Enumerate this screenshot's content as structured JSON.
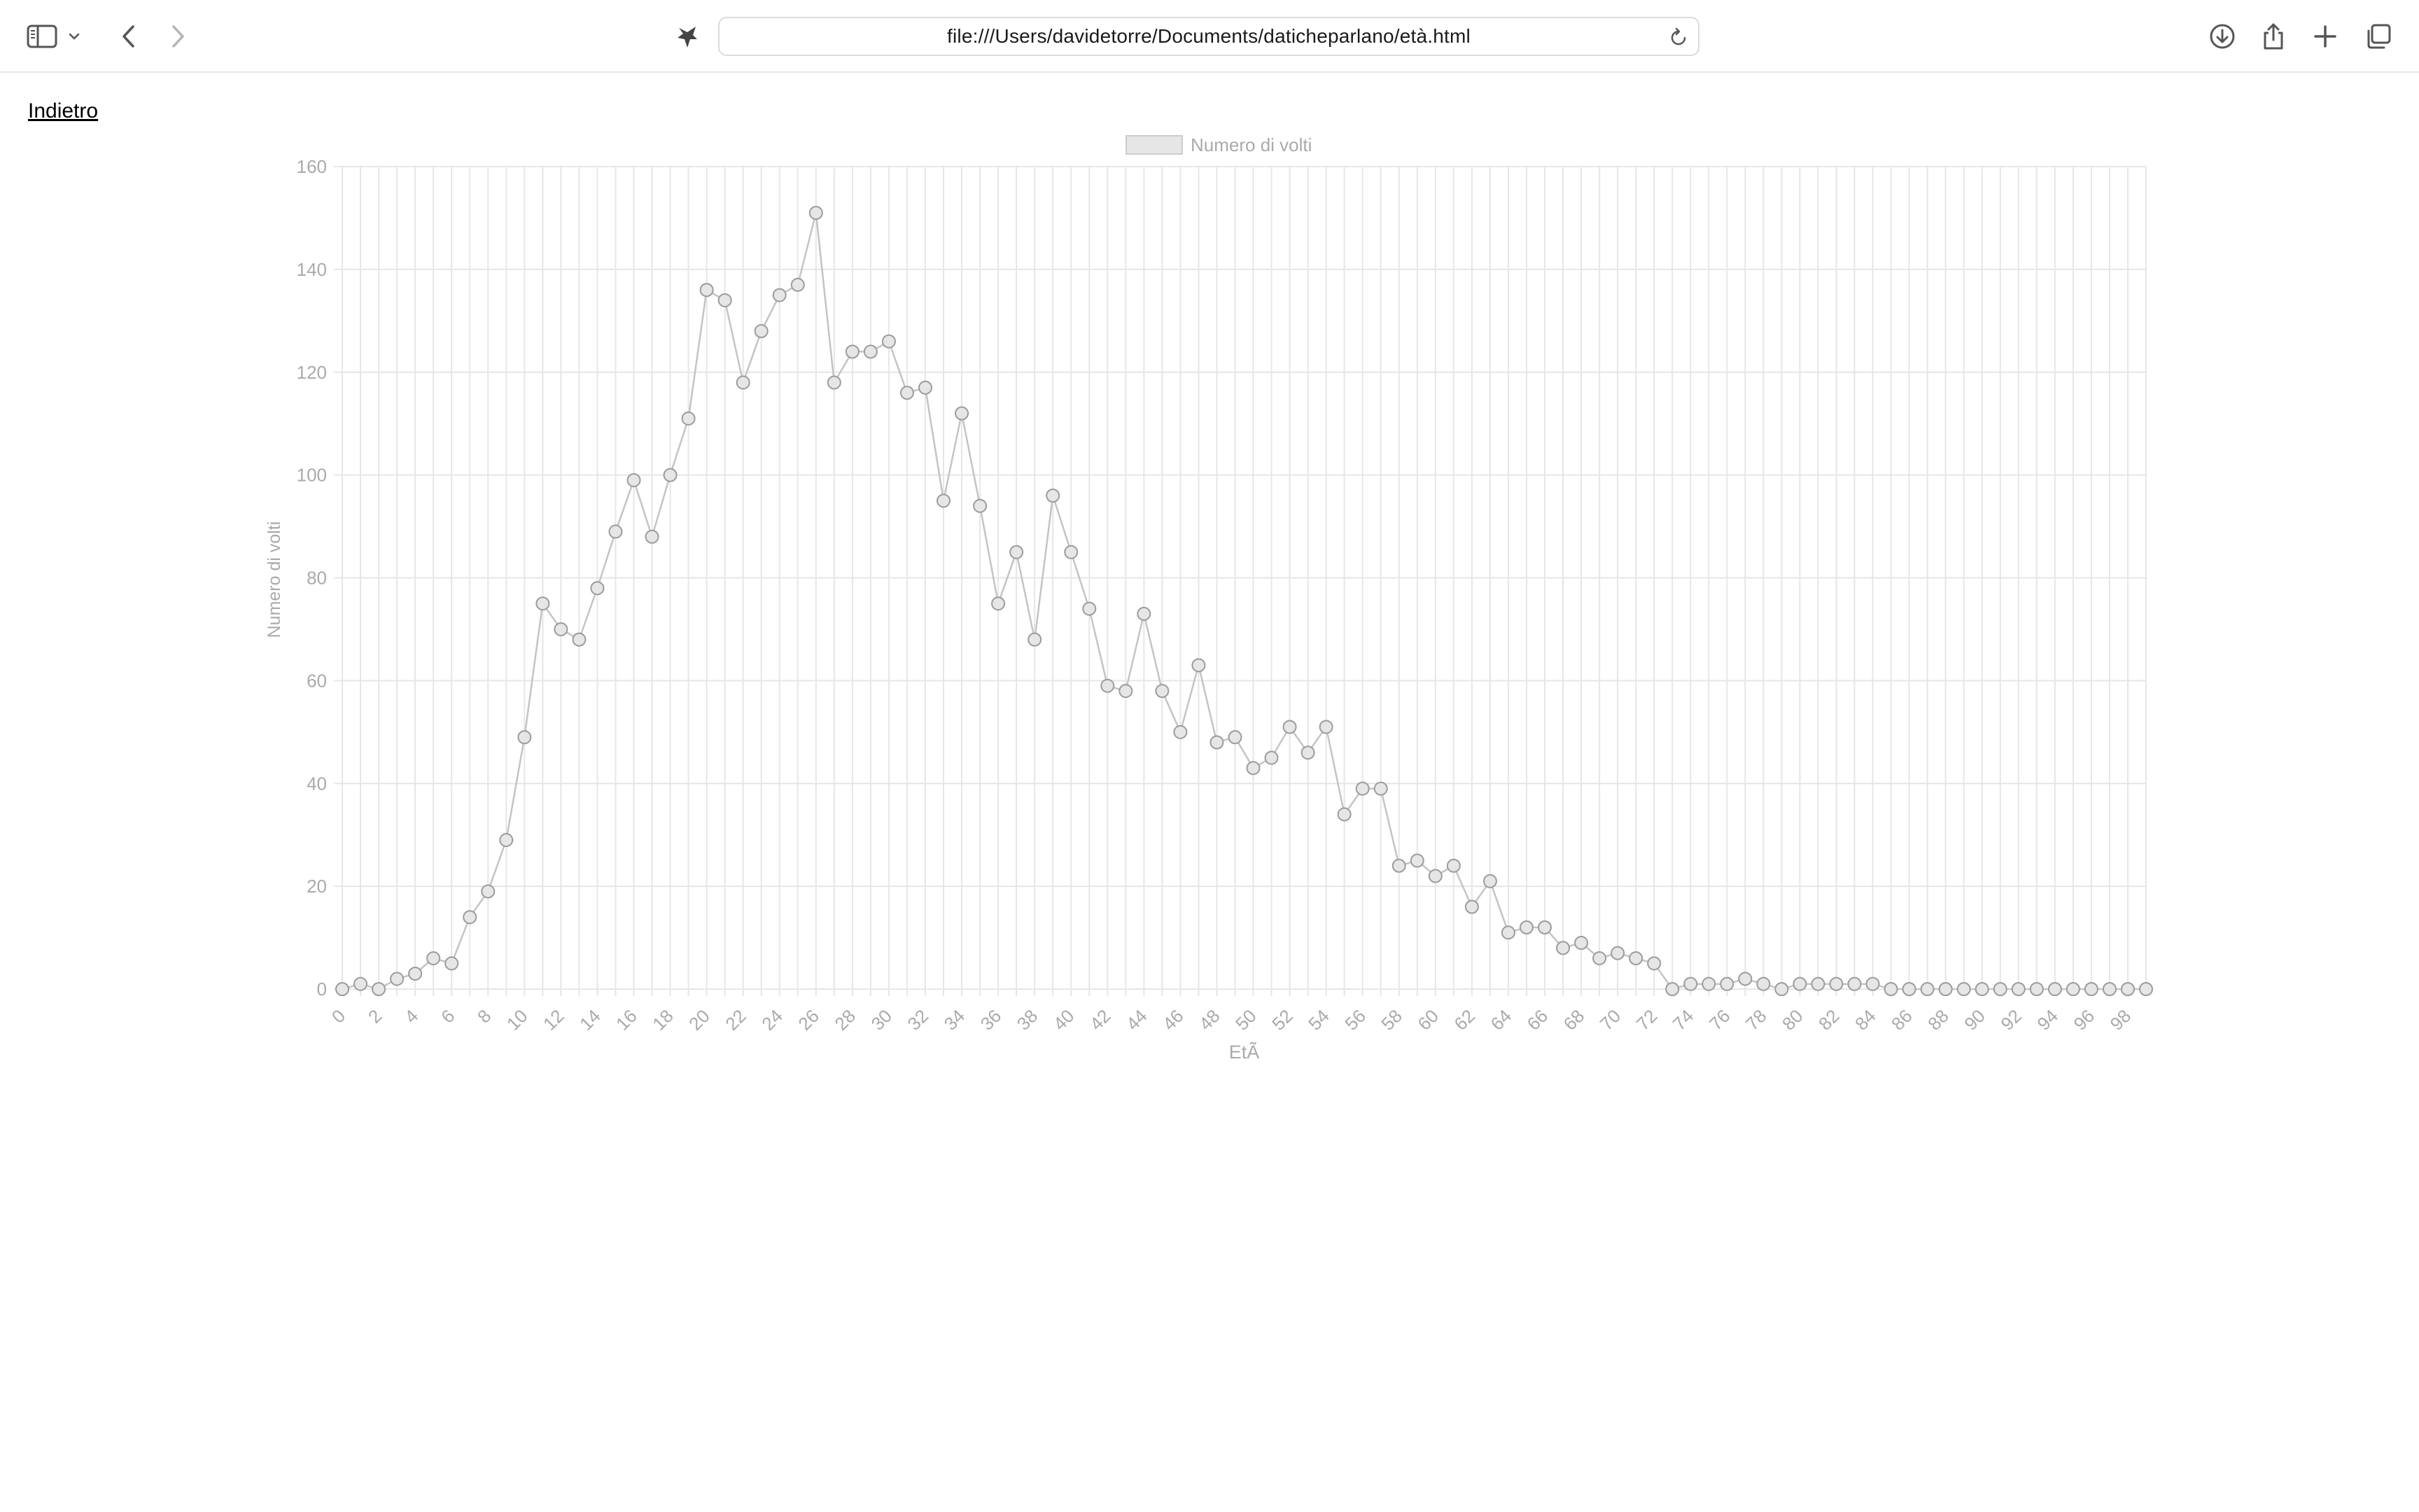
{
  "browser": {
    "url": "file:///Users/davidetorre/Documents/daticheparlano/età.html",
    "icons": {
      "sidebar": "sidebar-icon",
      "sidebar_menu": "chevron-down-icon",
      "back": "chevron-left-icon",
      "forward": "chevron-right-icon",
      "extension": "extension-icon",
      "reload": "reload-icon",
      "download": "download-icon",
      "share": "share-icon",
      "new_tab": "plus-icon",
      "tabs": "tabs-overview-icon"
    }
  },
  "page": {
    "back_link": "Indietro"
  },
  "chart_data": {
    "type": "line",
    "legend": {
      "label": "Numero di volti",
      "position": "top",
      "color": "#e6e6e6"
    },
    "xlabel": "EtÃ",
    "ylabel": "Numero di volti",
    "ylim": [
      0,
      160
    ],
    "yticks": [
      0,
      20,
      40,
      60,
      80,
      100,
      120,
      140,
      160
    ],
    "xticks": [
      0,
      2,
      4,
      6,
      8,
      10,
      12,
      14,
      16,
      18,
      20,
      22,
      24,
      26,
      28,
      30,
      32,
      34,
      36,
      38,
      40,
      42,
      44,
      46,
      48,
      50,
      52,
      54,
      56,
      58,
      60,
      62,
      64,
      66,
      68,
      70,
      72,
      74,
      76,
      78,
      80,
      82,
      84,
      86,
      88,
      90,
      92,
      94,
      96,
      98
    ],
    "grid": true,
    "colors": {
      "line": "#c4c4c4",
      "point_fill": "#e6e6e6",
      "point_stroke": "#9c9c9c",
      "grid": "#e6e6e6",
      "text": "#aaaaaa"
    },
    "x": [
      0,
      1,
      2,
      3,
      4,
      5,
      6,
      7,
      8,
      9,
      10,
      11,
      12,
      13,
      14,
      15,
      16,
      17,
      18,
      19,
      20,
      21,
      22,
      23,
      24,
      25,
      26,
      27,
      28,
      29,
      30,
      31,
      32,
      33,
      34,
      35,
      36,
      37,
      38,
      39,
      40,
      41,
      42,
      43,
      44,
      45,
      46,
      47,
      48,
      49,
      50,
      51,
      52,
      53,
      54,
      55,
      56,
      57,
      58,
      59,
      60,
      61,
      62,
      63,
      64,
      65,
      66,
      67,
      68,
      69,
      70,
      71,
      72,
      73,
      74,
      75,
      76,
      77,
      78,
      79,
      80,
      81,
      82,
      83,
      84,
      85,
      86,
      87,
      88,
      89,
      90,
      91,
      92,
      93,
      94,
      95,
      96,
      97,
      98,
      99
    ],
    "values": [
      0,
      1,
      0,
      2,
      3,
      6,
      5,
      14,
      19,
      29,
      49,
      75,
      70,
      68,
      78,
      89,
      99,
      88,
      100,
      111,
      136,
      134,
      118,
      128,
      135,
      137,
      151,
      118,
      124,
      124,
      126,
      116,
      117,
      95,
      112,
      94,
      75,
      85,
      68,
      96,
      85,
      74,
      59,
      58,
      73,
      58,
      50,
      63,
      48,
      49,
      43,
      45,
      51,
      46,
      51,
      34,
      39,
      39,
      24,
      25,
      22,
      24,
      16,
      21,
      11,
      12,
      12,
      8,
      9,
      6,
      7,
      6,
      5,
      0,
      1,
      1,
      1,
      2,
      1,
      0,
      1,
      1,
      1,
      1,
      1,
      0,
      0,
      0,
      0,
      0,
      0,
      0,
      0,
      0,
      0,
      0,
      0,
      0,
      0,
      0
    ]
  }
}
